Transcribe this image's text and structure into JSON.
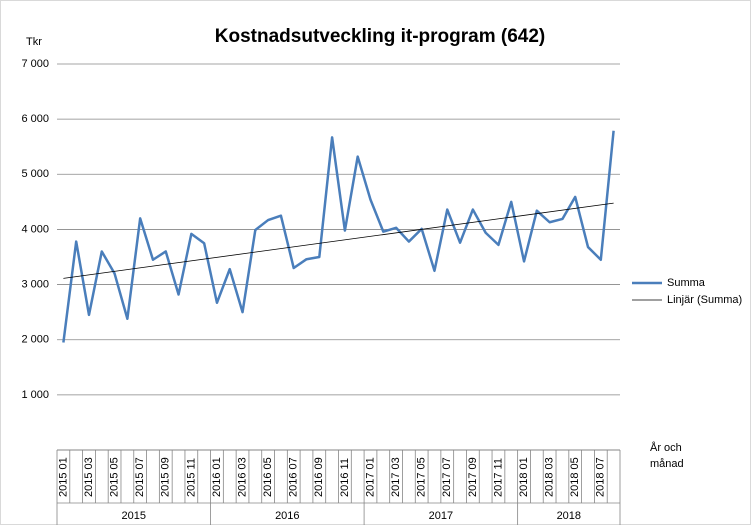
{
  "chart_data": {
    "type": "line",
    "title": "Kostnadsutveckling it-program (642)",
    "y_label": "Tkr",
    "x_label": "År och månad",
    "categories": [
      "2015 01",
      null,
      "2015 03",
      null,
      "2015 05",
      null,
      "2015 07",
      null,
      "2015 09",
      null,
      "2015 11",
      null,
      "2016 01",
      null,
      "2016 03",
      null,
      "2016 05",
      null,
      "2016 07",
      null,
      "2016 09",
      null,
      "2016 11",
      null,
      "2017 01",
      null,
      "2017 03",
      null,
      "2017 05",
      null,
      "2017 07",
      null,
      "2017 09",
      null,
      "2017 11",
      null,
      "2018 01",
      null,
      "2018 03",
      null,
      "2018 05",
      null,
      "2018 07",
      null
    ],
    "year_groups": [
      "2015",
      "2016",
      "2017",
      "2018"
    ],
    "series": [
      {
        "name": "Summa",
        "color": "#4a7ebb",
        "values": [
          1950,
          3780,
          2450,
          3600,
          3200,
          2380,
          4200,
          3450,
          3600,
          2820,
          3920,
          3750,
          2670,
          3280,
          2500,
          3990,
          4170,
          4250,
          3300,
          3460,
          3500,
          5670,
          3980,
          5320,
          4540,
          3960,
          4030,
          3780,
          4010,
          3250,
          4360,
          3760,
          4360,
          3940,
          3720,
          4500,
          3420,
          4340,
          4130,
          4190,
          4590,
          3680,
          3450,
          5790
        ]
      }
    ],
    "trendline": {
      "name": "Linjär (Summa)",
      "color": "#000000",
      "type": "linear"
    },
    "ylim": [
      0,
      7000
    ],
    "yticks": [
      {
        "value": 1000,
        "label": "1 000"
      },
      {
        "value": 2000,
        "label": "2 000"
      },
      {
        "value": 3000,
        "label": "3 000"
      },
      {
        "value": 4000,
        "label": "4 000"
      },
      {
        "value": 5000,
        "label": "5 000"
      },
      {
        "value": 6000,
        "label": "6 000"
      },
      {
        "value": 7000,
        "label": "7 000"
      }
    ],
    "grid": true,
    "legend": "right"
  }
}
